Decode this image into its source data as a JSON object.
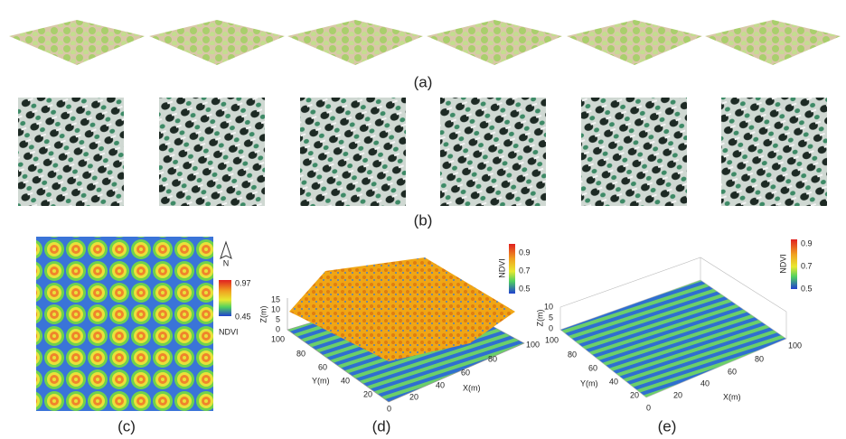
{
  "panels": {
    "a": {
      "label": "(a)"
    },
    "b": {
      "label": "(b)"
    },
    "c": {
      "label": "(c)",
      "north": "N",
      "colorbar": {
        "title": "NDVI",
        "ticks": [
          "0.97",
          "0.45"
        ]
      }
    },
    "d": {
      "label": "(d)",
      "colorbar": {
        "title": "NDVI",
        "ticks": [
          "0.9",
          "0.7",
          "0.5"
        ]
      },
      "z_axis": {
        "title": "Z(m)",
        "ticks": [
          "15",
          "10",
          "5",
          "0"
        ]
      },
      "y_axis": {
        "title": "Y(m)",
        "ticks": [
          "100",
          "80",
          "60",
          "40",
          "20"
        ]
      },
      "x_axis": {
        "title": "X(m)",
        "ticks": [
          "0",
          "20",
          "40",
          "60",
          "80",
          "100"
        ]
      }
    },
    "e": {
      "label": "(e)",
      "colorbar": {
        "title": "NDVI",
        "ticks": [
          "0.9",
          "0.7",
          "0.5"
        ]
      },
      "z_axis": {
        "title": "Z(m)",
        "ticks": [
          "10",
          "5",
          "0"
        ]
      },
      "y_axis": {
        "title": "Y(m)",
        "ticks": [
          "100",
          "80",
          "60",
          "40",
          "20"
        ]
      },
      "x_axis": {
        "title": "X(m)",
        "ticks": [
          "0",
          "20",
          "40",
          "60",
          "80",
          "100"
        ]
      }
    }
  }
}
